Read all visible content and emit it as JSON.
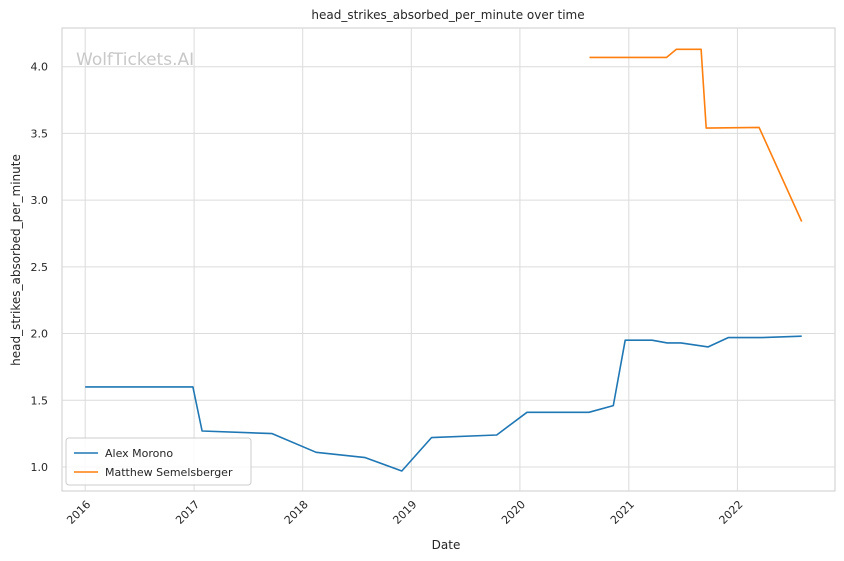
{
  "chart_data": {
    "type": "line",
    "title": "head_strikes_absorbed_per_minute over time",
    "xlabel": "Date",
    "ylabel": "head_strikes_absorbed_per_minute",
    "watermark": "WolfTickets.AI",
    "x_ticks": [
      "2016",
      "2017",
      "2018",
      "2019",
      "2020",
      "2021",
      "2022"
    ],
    "y_ticks": [
      "1.0",
      "1.5",
      "2.0",
      "2.5",
      "3.0",
      "3.5",
      "4.0"
    ],
    "xlim": [
      "2015-10-15",
      "2022-11-25"
    ],
    "ylim": [
      0.82,
      4.29
    ],
    "grid": true,
    "legend_position": "lower-left",
    "series": [
      {
        "name": "Alex Morono",
        "color": "#1f77b4",
        "points": [
          [
            "2016-01-01",
            1.6
          ],
          [
            "2016-12-28",
            1.6
          ],
          [
            "2017-01-28",
            1.27
          ],
          [
            "2017-09-20",
            1.25
          ],
          [
            "2018-02-15",
            1.11
          ],
          [
            "2018-07-30",
            1.07
          ],
          [
            "2018-11-30",
            0.97
          ],
          [
            "2019-03-10",
            1.22
          ],
          [
            "2019-10-15",
            1.24
          ],
          [
            "2020-01-25",
            1.41
          ],
          [
            "2020-08-20",
            1.41
          ],
          [
            "2020-11-10",
            1.46
          ],
          [
            "2020-12-20",
            1.95
          ],
          [
            "2021-03-20",
            1.95
          ],
          [
            "2021-05-10",
            1.93
          ],
          [
            "2021-06-25",
            1.93
          ],
          [
            "2021-09-25",
            1.9
          ],
          [
            "2021-12-01",
            1.97
          ],
          [
            "2022-03-20",
            1.97
          ],
          [
            "2022-08-05",
            1.98
          ]
        ]
      },
      {
        "name": "Matthew Semelsberger",
        "color": "#ff7f0e",
        "points": [
          [
            "2020-08-22",
            4.07
          ],
          [
            "2021-05-08",
            4.07
          ],
          [
            "2021-06-10",
            4.13
          ],
          [
            "2021-09-01",
            4.13
          ],
          [
            "2021-09-18",
            3.54
          ],
          [
            "2022-03-15",
            3.545
          ],
          [
            "2022-08-05",
            2.84
          ]
        ]
      }
    ]
  }
}
